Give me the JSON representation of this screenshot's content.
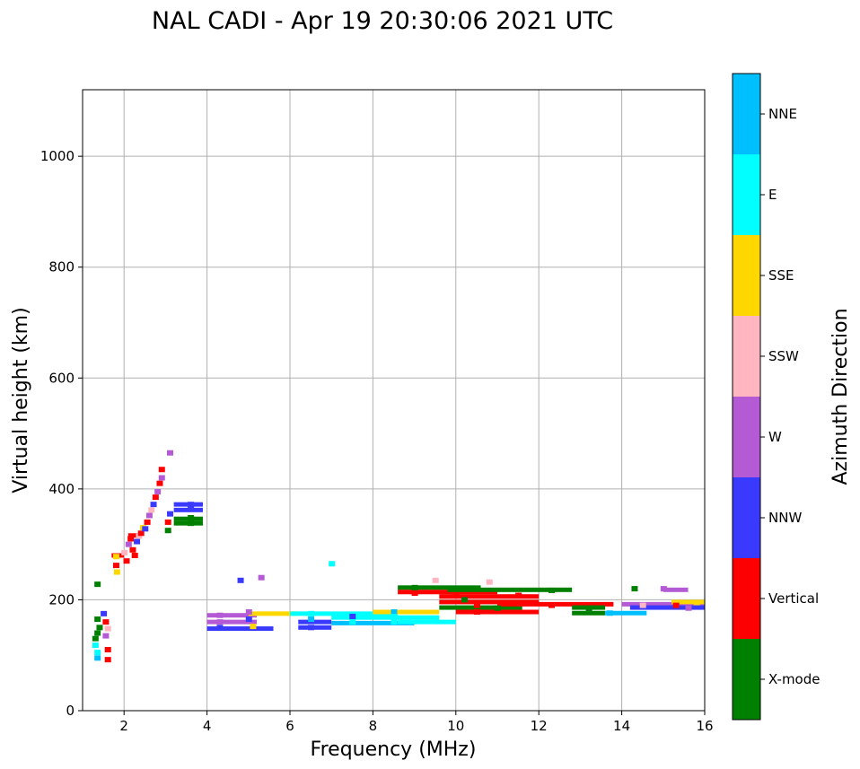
{
  "chart_data": {
    "type": "scatter",
    "title": "NAL CADI - Apr 19 20:30:06 2021 UTC",
    "xlabel": "Frequency (MHz)",
    "ylabel": "Virtual height (km)",
    "xlim": [
      1,
      16
    ],
    "ylim": [
      0,
      1120
    ],
    "xticks": [
      2,
      4,
      6,
      8,
      10,
      12,
      14,
      16
    ],
    "yticks": [
      0,
      200,
      400,
      600,
      800,
      1000
    ],
    "grid": true,
    "colorbar": {
      "label": "Azimuth Direction",
      "categories": [
        {
          "name": "X-mode",
          "color": "#008000"
        },
        {
          "name": "Vertical",
          "color": "#ff0000"
        },
        {
          "name": "NNW",
          "color": "#3a3aff"
        },
        {
          "name": "W",
          "color": "#b45ad4"
        },
        {
          "name": "SSW",
          "color": "#ffb6c1"
        },
        {
          "name": "SSE",
          "color": "#ffd700"
        },
        {
          "name": "E",
          "color": "#00ffff"
        },
        {
          "name": "NNE",
          "color": "#00bfff"
        }
      ]
    },
    "points": [
      {
        "f": 1.35,
        "h": 228,
        "c": "X-mode"
      },
      {
        "f": 1.35,
        "h": 165,
        "c": "X-mode"
      },
      {
        "f": 1.4,
        "h": 150,
        "c": "X-mode"
      },
      {
        "f": 1.35,
        "h": 140,
        "c": "X-mode"
      },
      {
        "f": 1.3,
        "h": 130,
        "c": "X-mode"
      },
      {
        "f": 1.3,
        "h": 118,
        "c": "E"
      },
      {
        "f": 1.35,
        "h": 105,
        "c": "E"
      },
      {
        "f": 1.35,
        "h": 95,
        "c": "NNE"
      },
      {
        "f": 1.5,
        "h": 175,
        "c": "NNW"
      },
      {
        "f": 1.55,
        "h": 160,
        "c": "Vertical"
      },
      {
        "f": 1.6,
        "h": 148,
        "c": "SSW"
      },
      {
        "f": 1.55,
        "h": 135,
        "c": "W"
      },
      {
        "f": 1.6,
        "h": 110,
        "c": "Vertical"
      },
      {
        "f": 1.6,
        "h": 92,
        "c": "Vertical"
      },
      {
        "f": 1.8,
        "h": 278,
        "c": "SSE"
      },
      {
        "f": 1.8,
        "h": 262,
        "c": "Vertical"
      },
      {
        "f": 1.82,
        "h": 250,
        "c": "SSE"
      },
      {
        "f": 2.0,
        "h": 285,
        "c": "SSW"
      },
      {
        "f": 2.05,
        "h": 270,
        "c": "Vertical"
      },
      {
        "f": 2.1,
        "h": 300,
        "c": "W"
      },
      {
        "f": 2.15,
        "h": 310,
        "c": "Vertical"
      },
      {
        "f": 2.2,
        "h": 290,
        "c": "Vertical"
      },
      {
        "f": 2.25,
        "h": 280,
        "c": "Vertical"
      },
      {
        "f": 2.3,
        "h": 305,
        "c": "NNW"
      },
      {
        "f": 2.35,
        "h": 315,
        "c": "SSW"
      },
      {
        "f": 2.4,
        "h": 320,
        "c": "Vertical"
      },
      {
        "f": 2.45,
        "h": 330,
        "c": "SSE"
      },
      {
        "f": 2.5,
        "h": 328,
        "c": "NNW"
      },
      {
        "f": 2.55,
        "h": 340,
        "c": "Vertical"
      },
      {
        "f": 2.6,
        "h": 352,
        "c": "W"
      },
      {
        "f": 2.65,
        "h": 362,
        "c": "SSW"
      },
      {
        "f": 2.7,
        "h": 372,
        "c": "NNW"
      },
      {
        "f": 2.75,
        "h": 385,
        "c": "Vertical"
      },
      {
        "f": 2.8,
        "h": 395,
        "c": "W"
      },
      {
        "f": 2.85,
        "h": 410,
        "c": "Vertical"
      },
      {
        "f": 2.9,
        "h": 420,
        "c": "W"
      },
      {
        "f": 2.9,
        "h": 435,
        "c": "Vertical"
      },
      {
        "f": 3.1,
        "h": 465,
        "c": "W"
      },
      {
        "f": 3.05,
        "h": 340,
        "c": "Vertical"
      },
      {
        "f": 3.05,
        "h": 325,
        "c": "X-mode"
      },
      {
        "f": 3.1,
        "h": 355,
        "c": "NNW"
      },
      {
        "f": 3.6,
        "h": 372,
        "c": "NNW"
      },
      {
        "f": 3.6,
        "h": 365,
        "c": "NNW"
      },
      {
        "f": 3.6,
        "h": 348,
        "c": "X-mode"
      },
      {
        "f": 3.6,
        "h": 338,
        "c": "X-mode"
      },
      {
        "f": 4.3,
        "h": 172,
        "c": "W"
      },
      {
        "f": 4.3,
        "h": 160,
        "c": "W"
      },
      {
        "f": 4.3,
        "h": 150,
        "c": "NNW"
      },
      {
        "f": 5.0,
        "h": 178,
        "c": "W"
      },
      {
        "f": 5.0,
        "h": 165,
        "c": "NNW"
      },
      {
        "f": 5.1,
        "h": 152,
        "c": "SSE"
      },
      {
        "f": 5.3,
        "h": 240,
        "c": "W"
      },
      {
        "f": 4.8,
        "h": 235,
        "c": "NNW"
      },
      {
        "f": 6.5,
        "h": 175,
        "c": "E"
      },
      {
        "f": 6.5,
        "h": 165,
        "c": "NNE"
      },
      {
        "f": 6.5,
        "h": 150,
        "c": "NNW"
      },
      {
        "f": 7.0,
        "h": 265,
        "c": "E"
      },
      {
        "f": 7.5,
        "h": 170,
        "c": "NNW"
      },
      {
        "f": 7.5,
        "h": 160,
        "c": "E"
      },
      {
        "f": 8.5,
        "h": 178,
        "c": "NNE"
      },
      {
        "f": 8.5,
        "h": 170,
        "c": "E"
      },
      {
        "f": 8.5,
        "h": 160,
        "c": "E"
      },
      {
        "f": 9.0,
        "h": 222,
        "c": "X-mode"
      },
      {
        "f": 9.0,
        "h": 212,
        "c": "Vertical"
      },
      {
        "f": 9.5,
        "h": 235,
        "c": "SSW"
      },
      {
        "f": 9.5,
        "h": 165,
        "c": "E"
      },
      {
        "f": 10.0,
        "h": 208,
        "c": "Vertical"
      },
      {
        "f": 10.2,
        "h": 200,
        "c": "X-mode"
      },
      {
        "f": 10.5,
        "h": 190,
        "c": "Vertical"
      },
      {
        "f": 10.5,
        "h": 178,
        "c": "Vertical"
      },
      {
        "f": 10.8,
        "h": 232,
        "c": "SSW"
      },
      {
        "f": 11.0,
        "h": 185,
        "c": "X-mode"
      },
      {
        "f": 11.5,
        "h": 208,
        "c": "Vertical"
      },
      {
        "f": 11.5,
        "h": 195,
        "c": "Vertical"
      },
      {
        "f": 12.3,
        "h": 217,
        "c": "X-mode"
      },
      {
        "f": 12.3,
        "h": 190,
        "c": "Vertical"
      },
      {
        "f": 13.2,
        "h": 182,
        "c": "X-mode"
      },
      {
        "f": 13.7,
        "h": 176,
        "c": "NNE"
      },
      {
        "f": 14.3,
        "h": 220,
        "c": "X-mode"
      },
      {
        "f": 14.5,
        "h": 190,
        "c": "SSW"
      },
      {
        "f": 15.0,
        "h": 220,
        "c": "W"
      },
      {
        "f": 15.3,
        "h": 190,
        "c": "Vertical"
      },
      {
        "f": 15.6,
        "h": 185,
        "c": "W"
      },
      {
        "f": 15.8,
        "h": 195,
        "c": "SSE"
      }
    ],
    "traces": [
      {
        "f0": 4.0,
        "f1": 5.2,
        "h": 172,
        "c": "W"
      },
      {
        "f0": 4.0,
        "f1": 5.2,
        "h": 160,
        "c": "W"
      },
      {
        "f0": 4.0,
        "f1": 5.6,
        "h": 148,
        "c": "NNW"
      },
      {
        "f0": 5.0,
        "f1": 6.2,
        "h": 175,
        "c": "SSE"
      },
      {
        "f0": 6.0,
        "f1": 8.6,
        "h": 175,
        "c": "E"
      },
      {
        "f0": 6.2,
        "f1": 7.0,
        "h": 160,
        "c": "NNW"
      },
      {
        "f0": 6.2,
        "f1": 7.0,
        "h": 150,
        "c": "NNW"
      },
      {
        "f0": 7.0,
        "f1": 9.6,
        "h": 168,
        "c": "E"
      },
      {
        "f0": 7.0,
        "f1": 9.0,
        "h": 158,
        "c": "NNE"
      },
      {
        "f0": 8.0,
        "f1": 9.6,
        "h": 178,
        "c": "SSE"
      },
      {
        "f0": 8.6,
        "f1": 10.0,
        "h": 160,
        "c": "E"
      },
      {
        "f0": 8.6,
        "f1": 10.6,
        "h": 222,
        "c": "X-mode"
      },
      {
        "f0": 8.6,
        "f1": 11.0,
        "h": 214,
        "c": "Vertical"
      },
      {
        "f0": 9.6,
        "f1": 12.0,
        "h": 206,
        "c": "Vertical"
      },
      {
        "f0": 9.8,
        "f1": 12.8,
        "h": 218,
        "c": "X-mode"
      },
      {
        "f0": 9.6,
        "f1": 12.0,
        "h": 196,
        "c": "Vertical"
      },
      {
        "f0": 9.6,
        "f1": 11.6,
        "h": 186,
        "c": "X-mode"
      },
      {
        "f0": 10.0,
        "f1": 12.0,
        "h": 178,
        "c": "Vertical"
      },
      {
        "f0": 11.0,
        "f1": 13.8,
        "h": 192,
        "c": "Vertical"
      },
      {
        "f0": 12.8,
        "f1": 13.6,
        "h": 186,
        "c": "X-mode"
      },
      {
        "f0": 12.8,
        "f1": 13.6,
        "h": 176,
        "c": "X-mode"
      },
      {
        "f0": 13.6,
        "f1": 14.6,
        "h": 176,
        "c": "NNE"
      },
      {
        "f0": 14.0,
        "f1": 16.0,
        "h": 192,
        "c": "W"
      },
      {
        "f0": 14.2,
        "f1": 16.0,
        "h": 186,
        "c": "NNW"
      },
      {
        "f0": 15.2,
        "f1": 16.0,
        "h": 196,
        "c": "SSE"
      },
      {
        "f0": 15.0,
        "f1": 15.6,
        "h": 218,
        "c": "W"
      },
      {
        "f0": 3.2,
        "f1": 3.9,
        "h": 372,
        "c": "NNW"
      },
      {
        "f0": 3.2,
        "f1": 3.9,
        "h": 362,
        "c": "NNW"
      },
      {
        "f0": 3.2,
        "f1": 3.9,
        "h": 346,
        "c": "X-mode"
      },
      {
        "f0": 3.2,
        "f1": 3.9,
        "h": 338,
        "c": "X-mode"
      },
      {
        "f0": 1.7,
        "f1": 2.0,
        "h": 280,
        "c": "Vertical"
      },
      {
        "f0": 2.1,
        "f1": 2.4,
        "h": 316,
        "c": "Vertical"
      }
    ]
  }
}
